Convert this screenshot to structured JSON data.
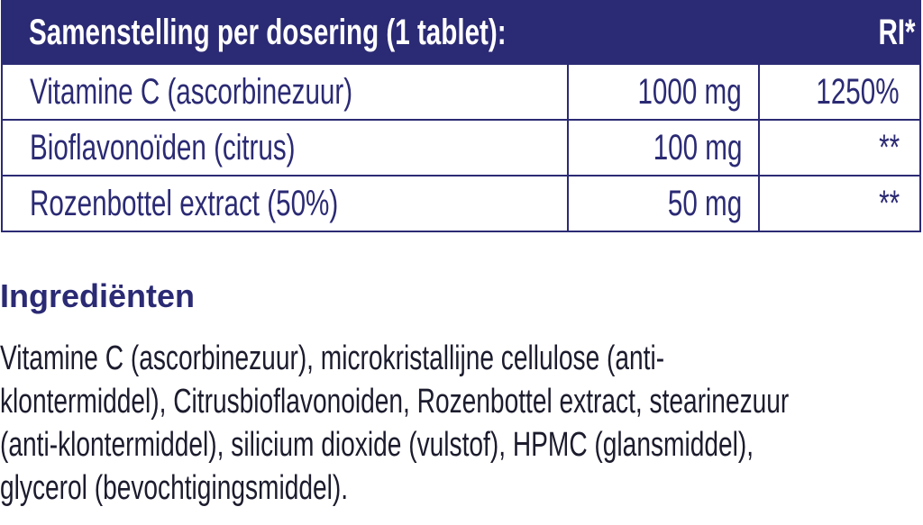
{
  "colors": {
    "brand": "#2b2a74",
    "text": "#1c1c2e",
    "header_text": "#ffffff"
  },
  "table": {
    "header": {
      "title": "Samenstelling per dosering (1 tablet):",
      "ri": "RI*"
    },
    "rows": [
      {
        "name": "Vitamine C (ascorbinezuur)",
        "amount": "1000 mg",
        "ri": "1250%"
      },
      {
        "name": "Bioflavonoïden (citrus)",
        "amount": "100 mg",
        "ri": "**"
      },
      {
        "name": "Rozenbottel extract (50%)",
        "amount": "50 mg",
        "ri": "**"
      }
    ]
  },
  "ingredients": {
    "title": "Ingrediënten",
    "lines": [
      "Vitamine C (ascorbinezuur), microkristallijne cellulose (anti-",
      "klontermiddel), Citrusbioflavonoiden, Rozenbottel extract, stearinezuur",
      "(anti-klontermiddel), silicium dioxide (vulstof), HPMC (glansmiddel),",
      "glycerol (bevochtigingsmiddel)."
    ]
  }
}
